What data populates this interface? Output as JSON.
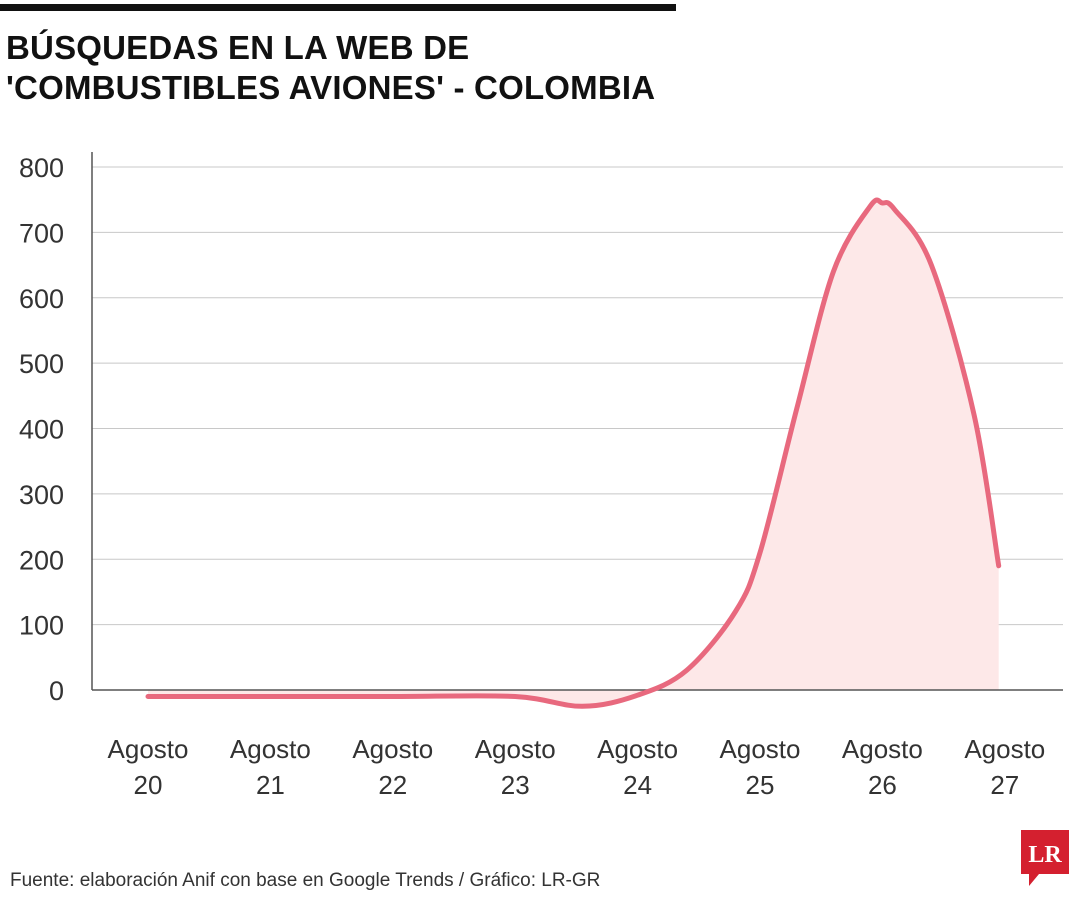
{
  "header": {
    "title_line1": "BÚSQUEDAS EN LA WEB DE",
    "title_line2": "'COMBUSTIBLES AVIONES' - COLOMBIA"
  },
  "chart_data": {
    "type": "area",
    "title": "BÚSQUEDAS EN LA WEB DE 'COMBUSTIBLES AVIONES' - COLOMBIA",
    "xlabel": "",
    "ylabel": "",
    "categories": [
      [
        "Agosto",
        "20"
      ],
      [
        "Agosto",
        "21"
      ],
      [
        "Agosto",
        "22"
      ],
      [
        "Agosto",
        "23"
      ],
      [
        "Agosto",
        "24"
      ],
      [
        "Agosto",
        "25"
      ],
      [
        "Agosto",
        "26"
      ],
      [
        "Agosto",
        "27"
      ]
    ],
    "series": [
      {
        "values": [
          -10,
          -10,
          -10,
          -10,
          -6,
          210,
          740,
          190
        ]
      }
    ],
    "curve_points": [
      [
        0,
        -10
      ],
      [
        1,
        -10
      ],
      [
        2,
        -10
      ],
      [
        3,
        -10
      ],
      [
        3.55,
        -25
      ],
      [
        4,
        -8
      ],
      [
        4.4,
        30
      ],
      [
        4.8,
        120
      ],
      [
        5,
        210
      ],
      [
        5.3,
        430
      ],
      [
        5.6,
        640
      ],
      [
        5.9,
        740
      ],
      [
        6,
        745
      ],
      [
        6.1,
        735
      ],
      [
        6.4,
        650
      ],
      [
        6.75,
        420
      ],
      [
        6.95,
        190
      ]
    ],
    "yticks": [
      0,
      100,
      200,
      300,
      400,
      500,
      600,
      700,
      800
    ],
    "ylim": [
      0,
      800
    ],
    "grid": true,
    "line_color": "#e8697e",
    "fill_color": "#fde8e8"
  },
  "footer": {
    "source": "Fuente: elaboración Anif con base en Google Trends / Gráfico: LR-GR",
    "logo_text": "LR",
    "logo_color": "#d4202f"
  }
}
